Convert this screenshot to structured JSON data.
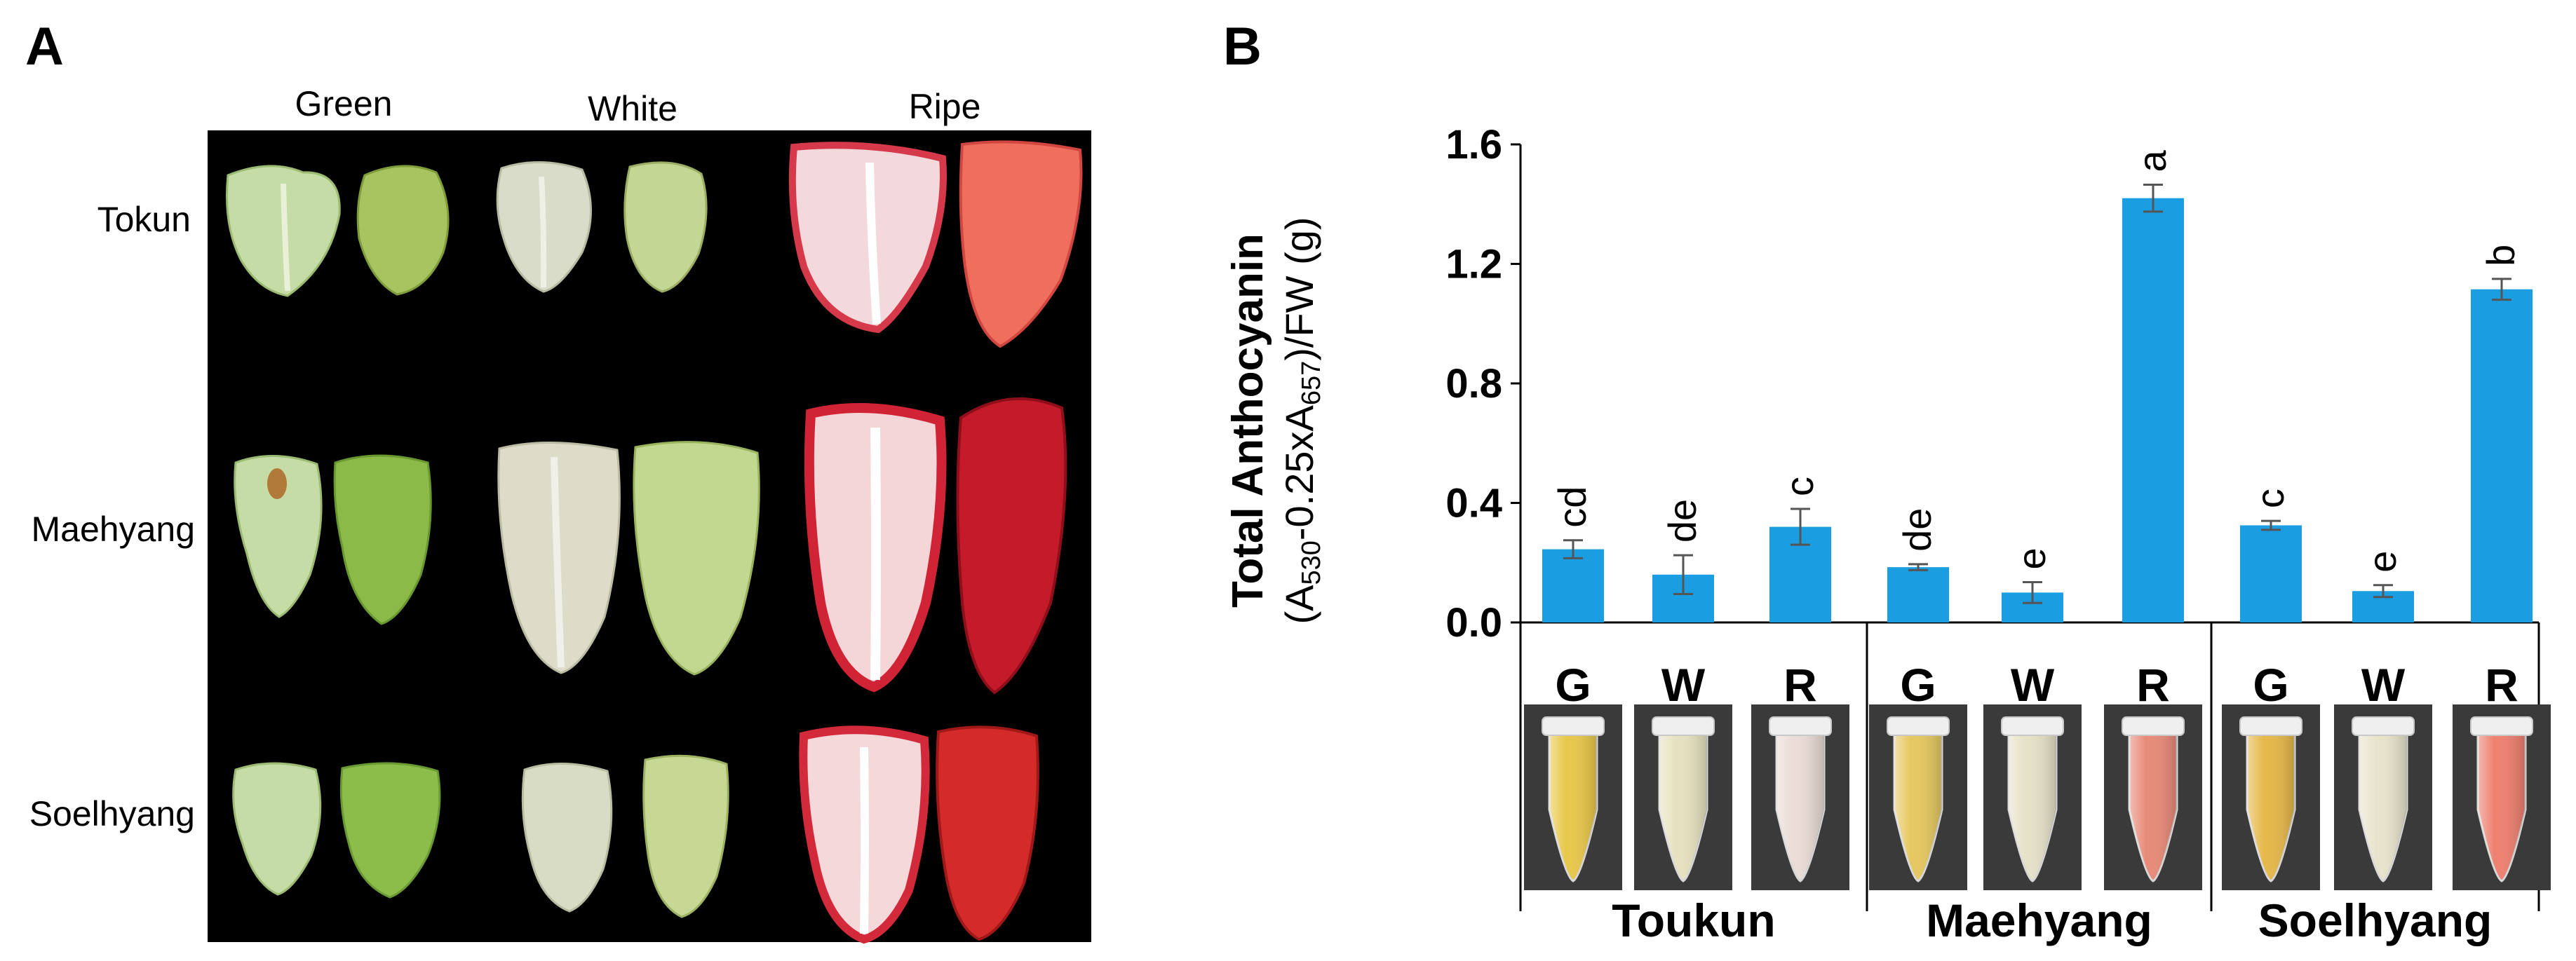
{
  "panel_a": {
    "letter": "A",
    "columns": [
      "Green",
      "White",
      "Ripe"
    ],
    "rows": [
      "Tokun",
      "Maehyang",
      "Soelhyang"
    ]
  },
  "panel_b": {
    "letter": "B",
    "ylabel_main": "Total Anthocyanin",
    "ylabel_sub": {
      "open": "(A",
      "sub1": "530",
      "mid": "-0.25xA",
      "sub2": "657",
      "close": ")/FW (g)"
    }
  },
  "colors": {
    "bar": "#1b9de2",
    "error_bar": "#555555",
    "photo_background": "#000000"
  },
  "chart_data": {
    "type": "bar",
    "ylabel": "Total Anthocyanin (A530-0.25xA657)/FW (g)",
    "ylim": [
      0,
      1.6
    ],
    "yticks": [
      "0.0",
      "0.4",
      "0.8",
      "1.2",
      "1.6"
    ],
    "ytick_values": [
      0,
      0.4,
      0.8,
      1.2,
      1.6
    ],
    "groups": [
      "Toukun",
      "Maehyang",
      "Soelhyang"
    ],
    "stages": [
      "G",
      "W",
      "R"
    ],
    "bars": [
      {
        "group": "Toukun",
        "stage": "G",
        "value": 0.245,
        "error": 0.03,
        "label": "cd"
      },
      {
        "group": "Toukun",
        "stage": "W",
        "value": 0.16,
        "error": 0.065,
        "label": "de"
      },
      {
        "group": "Toukun",
        "stage": "R",
        "value": 0.32,
        "error": 0.06,
        "label": "c"
      },
      {
        "group": "Maehyang",
        "stage": "G",
        "value": 0.185,
        "error": 0.01,
        "label": "de"
      },
      {
        "group": "Maehyang",
        "stage": "W",
        "value": 0.1,
        "error": 0.035,
        "label": "e"
      },
      {
        "group": "Maehyang",
        "stage": "R",
        "value": 1.42,
        "error": 0.045,
        "label": "a"
      },
      {
        "group": "Soelhyang",
        "stage": "G",
        "value": 0.325,
        "error": 0.015,
        "label": "c"
      },
      {
        "group": "Soelhyang",
        "stage": "W",
        "value": 0.105,
        "error": 0.02,
        "label": "e"
      },
      {
        "group": "Soelhyang",
        "stage": "R",
        "value": 1.115,
        "error": 0.035,
        "label": "b"
      }
    ],
    "tube_colors": [
      "#e8c84a",
      "#e6e2c0",
      "#eadcd6",
      "#e6c860",
      "#e6e2c8",
      "#e88a78",
      "#e6b84a",
      "#e8e4cc",
      "#ee8070"
    ],
    "grid": false
  }
}
